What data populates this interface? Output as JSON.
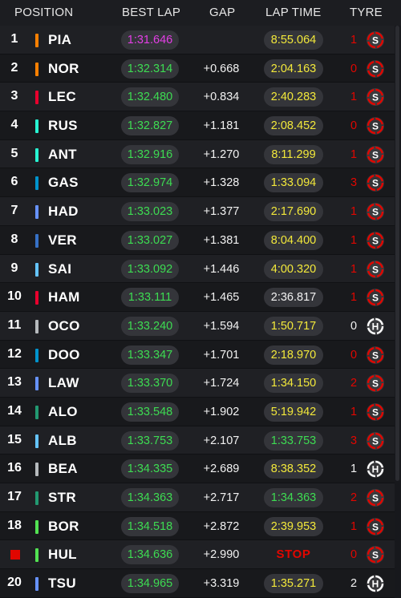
{
  "header": {
    "position": "POSITION",
    "best_lap": "BEST LAP",
    "gap": "GAP",
    "lap_time": "LAP TIME",
    "tyre": "TYRE"
  },
  "colors": {
    "purple": "#e43ee6",
    "green": "#3ddc52",
    "yellow": "#f3e93a",
    "white": "#f2f2f2",
    "red": "#e10600",
    "soft_tyre": "#e10600",
    "hard_tyre": "#ffffff"
  },
  "rows": [
    {
      "pos": "1",
      "driver": "PIA",
      "team_color": "#ff8000",
      "best_lap": "1:31.646",
      "best_color": "purple",
      "gap": "",
      "lap_time": "8:55.064",
      "lap_color": "yellow",
      "lap_pill": true,
      "tyre_count": "1",
      "tyre_count_color": "red",
      "tyre": "S",
      "tyre_icon": "soft-tyre-icon"
    },
    {
      "pos": "2",
      "driver": "NOR",
      "team_color": "#ff8000",
      "best_lap": "1:32.314",
      "best_color": "green",
      "gap": "+0.668",
      "lap_time": "2:04.163",
      "lap_color": "yellow",
      "lap_pill": true,
      "tyre_count": "0",
      "tyre_count_color": "red",
      "tyre": "S",
      "tyre_icon": "soft-tyre-icon"
    },
    {
      "pos": "3",
      "driver": "LEC",
      "team_color": "#e8002d",
      "best_lap": "1:32.480",
      "best_color": "green",
      "gap": "+0.834",
      "lap_time": "2:40.283",
      "lap_color": "yellow",
      "lap_pill": true,
      "tyre_count": "1",
      "tyre_count_color": "red",
      "tyre": "S",
      "tyre_icon": "soft-tyre-icon"
    },
    {
      "pos": "4",
      "driver": "RUS",
      "team_color": "#27f4d2",
      "best_lap": "1:32.827",
      "best_color": "green",
      "gap": "+1.181",
      "lap_time": "2:08.452",
      "lap_color": "yellow",
      "lap_pill": true,
      "tyre_count": "0",
      "tyre_count_color": "red",
      "tyre": "S",
      "tyre_icon": "soft-tyre-icon"
    },
    {
      "pos": "5",
      "driver": "ANT",
      "team_color": "#27f4d2",
      "best_lap": "1:32.916",
      "best_color": "green",
      "gap": "+1.270",
      "lap_time": "8:11.299",
      "lap_color": "yellow",
      "lap_pill": true,
      "tyre_count": "1",
      "tyre_count_color": "red",
      "tyre": "S",
      "tyre_icon": "soft-tyre-icon"
    },
    {
      "pos": "6",
      "driver": "GAS",
      "team_color": "#0093cc",
      "best_lap": "1:32.974",
      "best_color": "green",
      "gap": "+1.328",
      "lap_time": "1:33.094",
      "lap_color": "yellow",
      "lap_pill": true,
      "tyre_count": "3",
      "tyre_count_color": "red",
      "tyre": "S",
      "tyre_icon": "soft-tyre-icon"
    },
    {
      "pos": "7",
      "driver": "HAD",
      "team_color": "#6692ff",
      "best_lap": "1:33.023",
      "best_color": "green",
      "gap": "+1.377",
      "lap_time": "2:17.690",
      "lap_color": "yellow",
      "lap_pill": true,
      "tyre_count": "1",
      "tyre_count_color": "red",
      "tyre": "S",
      "tyre_icon": "soft-tyre-icon"
    },
    {
      "pos": "8",
      "driver": "VER",
      "team_color": "#3671c6",
      "best_lap": "1:33.027",
      "best_color": "green",
      "gap": "+1.381",
      "lap_time": "8:04.400",
      "lap_color": "yellow",
      "lap_pill": true,
      "tyre_count": "1",
      "tyre_count_color": "red",
      "tyre": "S",
      "tyre_icon": "soft-tyre-icon"
    },
    {
      "pos": "9",
      "driver": "SAI",
      "team_color": "#64c4ff",
      "best_lap": "1:33.092",
      "best_color": "green",
      "gap": "+1.446",
      "lap_time": "4:00.320",
      "lap_color": "yellow",
      "lap_pill": true,
      "tyre_count": "1",
      "tyre_count_color": "red",
      "tyre": "S",
      "tyre_icon": "soft-tyre-icon"
    },
    {
      "pos": "10",
      "driver": "HAM",
      "team_color": "#e8002d",
      "best_lap": "1:33.111",
      "best_color": "green",
      "gap": "+1.465",
      "lap_time": "2:36.817",
      "lap_color": "white",
      "lap_pill": true,
      "tyre_count": "1",
      "tyre_count_color": "red",
      "tyre": "S",
      "tyre_icon": "soft-tyre-icon"
    },
    {
      "pos": "11",
      "driver": "OCO",
      "team_color": "#b6babd",
      "best_lap": "1:33.240",
      "best_color": "green",
      "gap": "+1.594",
      "lap_time": "1:50.717",
      "lap_color": "yellow",
      "lap_pill": true,
      "tyre_count": "0",
      "tyre_count_color": "white",
      "tyre": "H",
      "tyre_icon": "hard-tyre-icon"
    },
    {
      "pos": "12",
      "driver": "DOO",
      "team_color": "#0093cc",
      "best_lap": "1:33.347",
      "best_color": "green",
      "gap": "+1.701",
      "lap_time": "2:18.970",
      "lap_color": "yellow",
      "lap_pill": true,
      "tyre_count": "0",
      "tyre_count_color": "red",
      "tyre": "S",
      "tyre_icon": "soft-tyre-icon"
    },
    {
      "pos": "13",
      "driver": "LAW",
      "team_color": "#6692ff",
      "best_lap": "1:33.370",
      "best_color": "green",
      "gap": "+1.724",
      "lap_time": "1:34.150",
      "lap_color": "yellow",
      "lap_pill": true,
      "tyre_count": "2",
      "tyre_count_color": "red",
      "tyre": "S",
      "tyre_icon": "soft-tyre-icon"
    },
    {
      "pos": "14",
      "driver": "ALO",
      "team_color": "#229971",
      "best_lap": "1:33.548",
      "best_color": "green",
      "gap": "+1.902",
      "lap_time": "5:19.942",
      "lap_color": "yellow",
      "lap_pill": true,
      "tyre_count": "1",
      "tyre_count_color": "red",
      "tyre": "S",
      "tyre_icon": "soft-tyre-icon"
    },
    {
      "pos": "15",
      "driver": "ALB",
      "team_color": "#64c4ff",
      "best_lap": "1:33.753",
      "best_color": "green",
      "gap": "+2.107",
      "lap_time": "1:33.753",
      "lap_color": "green",
      "lap_pill": true,
      "tyre_count": "3",
      "tyre_count_color": "red",
      "tyre": "S",
      "tyre_icon": "soft-tyre-icon"
    },
    {
      "pos": "16",
      "driver": "BEA",
      "team_color": "#b6babd",
      "best_lap": "1:34.335",
      "best_color": "green",
      "gap": "+2.689",
      "lap_time": "8:38.352",
      "lap_color": "yellow",
      "lap_pill": true,
      "tyre_count": "1",
      "tyre_count_color": "white",
      "tyre": "H",
      "tyre_icon": "hard-tyre-icon"
    },
    {
      "pos": "17",
      "driver": "STR",
      "team_color": "#229971",
      "best_lap": "1:34.363",
      "best_color": "green",
      "gap": "+2.717",
      "lap_time": "1:34.363",
      "lap_color": "green",
      "lap_pill": true,
      "tyre_count": "2",
      "tyre_count_color": "red",
      "tyre": "S",
      "tyre_icon": "soft-tyre-icon"
    },
    {
      "pos": "18",
      "driver": "BOR",
      "team_color": "#52e252",
      "best_lap": "1:34.518",
      "best_color": "green",
      "gap": "+2.872",
      "lap_time": "2:39.953",
      "lap_color": "yellow",
      "lap_pill": true,
      "tyre_count": "1",
      "tyre_count_color": "red",
      "tyre": "S",
      "tyre_icon": "soft-tyre-icon"
    },
    {
      "pos": "",
      "stopped": true,
      "driver": "HUL",
      "team_color": "#52e252",
      "best_lap": "1:34.636",
      "best_color": "green",
      "gap": "+2.990",
      "lap_time": "STOP",
      "lap_color": "red",
      "lap_pill": false,
      "tyre_count": "0",
      "tyre_count_color": "red",
      "tyre": "S",
      "tyre_icon": "soft-tyre-icon"
    },
    {
      "pos": "20",
      "driver": "TSU",
      "team_color": "#6692ff",
      "best_lap": "1:34.965",
      "best_color": "green",
      "gap": "+3.319",
      "lap_time": "1:35.271",
      "lap_color": "yellow",
      "lap_pill": true,
      "tyre_count": "2",
      "tyre_count_color": "white",
      "tyre": "H",
      "tyre_icon": "hard-tyre-icon"
    }
  ]
}
